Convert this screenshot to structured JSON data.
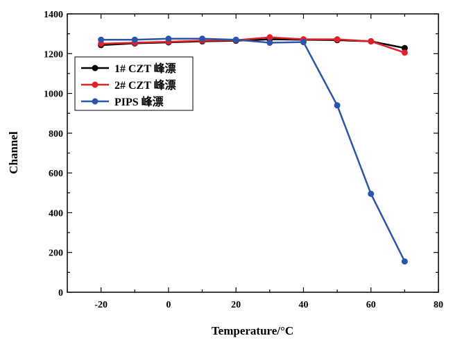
{
  "chart_data": {
    "type": "line",
    "title": "",
    "xlabel": "Temperature/°C",
    "ylabel": "Channel",
    "xlim": [
      -30,
      80
    ],
    "ylim": [
      0,
      1400
    ],
    "xticks": [
      -20,
      0,
      20,
      40,
      60,
      80
    ],
    "yticks": [
      0,
      200,
      400,
      600,
      800,
      1000,
      1200,
      1400
    ],
    "grid": false,
    "legend_position": "top-left",
    "x": [
      -20,
      -10,
      0,
      10,
      20,
      30,
      40,
      50,
      60,
      70
    ],
    "series": [
      {
        "name": "1# CZT 峰漂",
        "color": "#000000",
        "values": [
          1243,
          1252,
          1257,
          1262,
          1265,
          1272,
          1270,
          1268,
          1262,
          1228
        ]
      },
      {
        "name": "2# CZT 峰漂",
        "color": "#e0202a",
        "values": [
          1250,
          1255,
          1260,
          1265,
          1268,
          1282,
          1272,
          1272,
          1262,
          1205
        ]
      },
      {
        "name": "PIPS 峰漂",
        "color": "#2a55a8",
        "values": [
          1270,
          1270,
          1275,
          1275,
          1270,
          1255,
          1258,
          940,
          495,
          155
        ]
      }
    ]
  }
}
